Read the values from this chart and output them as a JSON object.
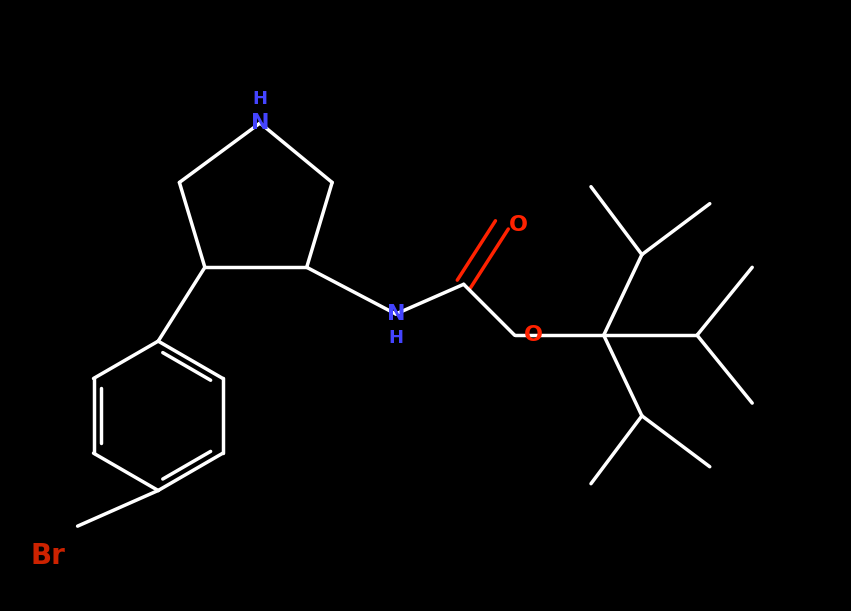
{
  "bg_color": "#000000",
  "bond_color": "#ffffff",
  "N_color": "#4444ff",
  "O_color": "#ff2200",
  "Br_color": "#cc2200",
  "bond_width": 2.5,
  "xlim": [
    0,
    10
  ],
  "ylim": [
    0,
    7.2
  ]
}
